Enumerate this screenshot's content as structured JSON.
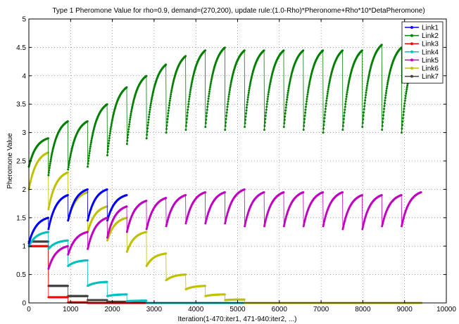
{
  "chart_data": {
    "type": "scatter",
    "title": "Type 1 Pheromone Value for rho=0.9, demand=(270,200), update rule:(1.0-Rho)*Pheronome+Rho*10*DetaPheromone)",
    "xlabel": "Iteration(1-470:iter1, 471-940:iter2, ...)",
    "ylabel": "Pheromone Value",
    "xlim": [
      0,
      10000
    ],
    "ylim": [
      0,
      5
    ],
    "xticks": [
      "0",
      "1000",
      "2000",
      "3000",
      "4000",
      "5000",
      "6000",
      "7000",
      "8000",
      "9000",
      "10000"
    ],
    "yticks": [
      "0",
      "0.5",
      "1",
      "1.5",
      "2",
      "2.5",
      "3",
      "3.5",
      "4",
      "4.5",
      "5"
    ],
    "grid": true,
    "legend": "top-right",
    "period": 470,
    "series": [
      {
        "name": "Link1",
        "color": "#0000ff",
        "marker": "dot",
        "segments": [
          [
            0,
            470,
            1.05,
            1.5
          ],
          [
            470,
            940,
            1.3,
            1.9
          ],
          [
            940,
            1410,
            1.45,
            2.0
          ],
          [
            1410,
            1880,
            1.45,
            2.0
          ],
          [
            1880,
            2350,
            1.45,
            1.9
          ]
        ]
      },
      {
        "name": "Link2",
        "color": "#008000",
        "marker": "dot",
        "segments": [
          [
            0,
            470,
            2.4,
            2.9
          ],
          [
            470,
            940,
            2.25,
            3.2
          ],
          [
            940,
            1410,
            2.35,
            3.2
          ],
          [
            1410,
            1880,
            2.4,
            3.5
          ],
          [
            1880,
            2350,
            2.6,
            3.8
          ],
          [
            2350,
            2820,
            2.8,
            4.0
          ],
          [
            2820,
            3290,
            2.9,
            4.2
          ],
          [
            3290,
            3760,
            3.0,
            4.35
          ],
          [
            3760,
            4230,
            3.05,
            4.45
          ],
          [
            4230,
            4700,
            3.1,
            4.5
          ],
          [
            4700,
            5170,
            3.05,
            4.45
          ],
          [
            5170,
            5640,
            3.1,
            4.45
          ],
          [
            5640,
            6110,
            3.05,
            4.45
          ],
          [
            6110,
            6580,
            3.1,
            4.45
          ],
          [
            6580,
            7050,
            3.05,
            4.45
          ],
          [
            7050,
            7520,
            3.0,
            4.45
          ],
          [
            7520,
            7990,
            3.05,
            4.45
          ],
          [
            7990,
            8460,
            3.1,
            4.55
          ],
          [
            8460,
            8930,
            3.05,
            4.5
          ],
          [
            8930,
            9400,
            3.0,
            4.45
          ]
        ]
      },
      {
        "name": "Link3",
        "color": "#ff0000",
        "marker": "dot",
        "segments": [
          [
            0,
            470,
            1.0,
            1.0
          ],
          [
            470,
            940,
            0.1,
            0.1
          ],
          [
            940,
            1410,
            0.01,
            0.01
          ],
          [
            1410,
            9400,
            0.0,
            0.0
          ]
        ]
      },
      {
        "name": "Link4",
        "color": "#00c0c0",
        "marker": "dot",
        "segments": [
          [
            0,
            470,
            1.0,
            1.25
          ],
          [
            470,
            940,
            0.95,
            1.1
          ],
          [
            940,
            1410,
            0.65,
            0.75
          ],
          [
            1410,
            1880,
            0.3,
            0.37
          ],
          [
            1880,
            2350,
            0.12,
            0.15
          ],
          [
            2350,
            2820,
            0.03,
            0.04
          ],
          [
            2820,
            9400,
            0.0,
            0.0
          ]
        ]
      },
      {
        "name": "Link5",
        "color": "#c000c0",
        "marker": "dot",
        "segments": [
          [
            470,
            940,
            0.6,
            1.0
          ],
          [
            940,
            1410,
            0.85,
            1.25
          ],
          [
            1410,
            1880,
            0.95,
            1.5
          ],
          [
            1880,
            2350,
            1.15,
            1.7
          ],
          [
            2350,
            2820,
            1.25,
            1.8
          ],
          [
            2820,
            3290,
            1.3,
            1.85
          ],
          [
            3290,
            3760,
            1.35,
            1.9
          ],
          [
            3760,
            4230,
            1.4,
            1.95
          ],
          [
            4230,
            4700,
            1.4,
            1.95
          ],
          [
            4700,
            5170,
            1.4,
            2.0
          ],
          [
            5170,
            5640,
            1.35,
            1.95
          ],
          [
            5640,
            6110,
            1.35,
            1.95
          ],
          [
            6110,
            6580,
            1.35,
            1.95
          ],
          [
            6580,
            7050,
            1.35,
            1.95
          ],
          [
            7050,
            7520,
            1.35,
            1.95
          ],
          [
            7520,
            7990,
            1.3,
            1.9
          ],
          [
            7990,
            8460,
            1.3,
            1.9
          ],
          [
            8460,
            8930,
            1.35,
            1.9
          ],
          [
            8930,
            9400,
            1.35,
            1.95
          ]
        ]
      },
      {
        "name": "Link6",
        "color": "#c0c000",
        "marker": "dot",
        "segments": [
          [
            0,
            470,
            2.0,
            2.65
          ],
          [
            470,
            940,
            1.65,
            2.3
          ],
          [
            940,
            1410,
            1.45,
            1.95
          ],
          [
            1410,
            1880,
            1.25,
            1.7
          ],
          [
            1880,
            2350,
            1.1,
            1.5
          ],
          [
            2350,
            2820,
            0.9,
            1.25
          ],
          [
            2820,
            3290,
            0.65,
            0.87
          ],
          [
            3290,
            3760,
            0.4,
            0.5
          ],
          [
            3760,
            4230,
            0.24,
            0.3
          ],
          [
            4230,
            4700,
            0.12,
            0.15
          ],
          [
            4700,
            5170,
            0.05,
            0.06
          ],
          [
            5170,
            9400,
            0.0,
            0.0
          ]
        ]
      },
      {
        "name": "Link7",
        "color": "#404040",
        "marker": "dot",
        "segments": [
          [
            0,
            470,
            1.08,
            1.08
          ],
          [
            470,
            940,
            0.3,
            0.3
          ],
          [
            940,
            1410,
            0.12,
            0.12
          ],
          [
            1410,
            1880,
            0.05,
            0.05
          ],
          [
            1880,
            2350,
            0.02,
            0.02
          ],
          [
            2350,
            9400,
            0.0,
            0.0
          ]
        ]
      }
    ]
  }
}
